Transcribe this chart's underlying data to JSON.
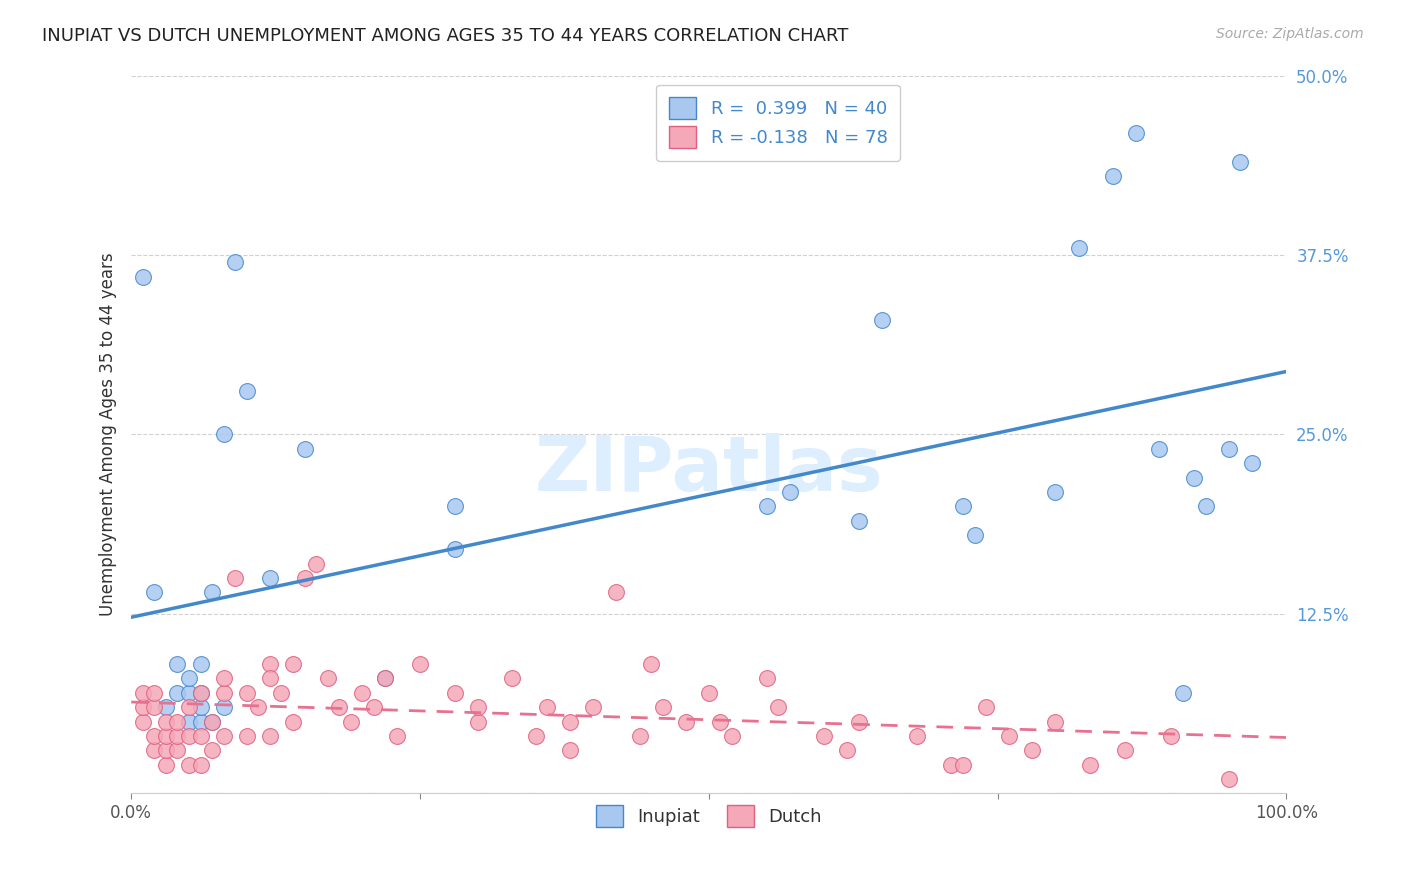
{
  "title": "INUPIAT VS DUTCH UNEMPLOYMENT AMONG AGES 35 TO 44 YEARS CORRELATION CHART",
  "source": "Source: ZipAtlas.com",
  "ylabel": "Unemployment Among Ages 35 to 44 years",
  "xlim": [
    0,
    1.0
  ],
  "ylim": [
    0,
    0.5
  ],
  "xticks": [
    0.0,
    0.25,
    0.5,
    0.75,
    1.0
  ],
  "xticklabels": [
    "0.0%",
    "",
    "",
    "",
    "100.0%"
  ],
  "yticks": [
    0.0,
    0.125,
    0.25,
    0.375,
    0.5
  ],
  "yticklabels": [
    "",
    "12.5%",
    "25.0%",
    "37.5%",
    "50.0%"
  ],
  "inupiat_R": 0.399,
  "inupiat_N": 40,
  "dutch_R": -0.138,
  "dutch_N": 78,
  "inupiat_color": "#a8c8f0",
  "dutch_color": "#f5a8b8",
  "inupiat_line_color": "#4488cc",
  "dutch_line_color": "#e87090",
  "watermark": "ZIPatlas",
  "inupiat_x": [
    0.01,
    0.02,
    0.03,
    0.04,
    0.04,
    0.05,
    0.05,
    0.05,
    0.06,
    0.06,
    0.06,
    0.06,
    0.07,
    0.07,
    0.08,
    0.08,
    0.09,
    0.1,
    0.12,
    0.15,
    0.22,
    0.28,
    0.28,
    0.55,
    0.57,
    0.63,
    0.65,
    0.72,
    0.73,
    0.8,
    0.82,
    0.85,
    0.87,
    0.89,
    0.91,
    0.92,
    0.93,
    0.95,
    0.96,
    0.97
  ],
  "inupiat_y": [
    0.36,
    0.14,
    0.06,
    0.07,
    0.09,
    0.05,
    0.07,
    0.08,
    0.05,
    0.06,
    0.07,
    0.09,
    0.05,
    0.14,
    0.06,
    0.25,
    0.37,
    0.28,
    0.15,
    0.24,
    0.08,
    0.17,
    0.2,
    0.2,
    0.21,
    0.19,
    0.33,
    0.2,
    0.18,
    0.21,
    0.38,
    0.43,
    0.46,
    0.24,
    0.07,
    0.22,
    0.2,
    0.24,
    0.44,
    0.23
  ],
  "dutch_x": [
    0.01,
    0.01,
    0.01,
    0.02,
    0.02,
    0.02,
    0.02,
    0.03,
    0.03,
    0.03,
    0.03,
    0.04,
    0.04,
    0.04,
    0.05,
    0.05,
    0.05,
    0.06,
    0.06,
    0.06,
    0.07,
    0.07,
    0.08,
    0.08,
    0.08,
    0.09,
    0.1,
    0.1,
    0.11,
    0.12,
    0.12,
    0.12,
    0.13,
    0.14,
    0.14,
    0.15,
    0.16,
    0.17,
    0.18,
    0.19,
    0.2,
    0.21,
    0.22,
    0.23,
    0.25,
    0.28,
    0.3,
    0.3,
    0.33,
    0.35,
    0.36,
    0.38,
    0.38,
    0.4,
    0.42,
    0.44,
    0.45,
    0.46,
    0.48,
    0.5,
    0.51,
    0.52,
    0.55,
    0.56,
    0.6,
    0.62,
    0.63,
    0.68,
    0.71,
    0.72,
    0.74,
    0.76,
    0.78,
    0.8,
    0.83,
    0.86,
    0.9,
    0.95
  ],
  "dutch_y": [
    0.05,
    0.06,
    0.07,
    0.03,
    0.04,
    0.06,
    0.07,
    0.02,
    0.03,
    0.04,
    0.05,
    0.03,
    0.04,
    0.05,
    0.02,
    0.04,
    0.06,
    0.02,
    0.04,
    0.07,
    0.03,
    0.05,
    0.04,
    0.07,
    0.08,
    0.15,
    0.04,
    0.07,
    0.06,
    0.09,
    0.04,
    0.08,
    0.07,
    0.05,
    0.09,
    0.15,
    0.16,
    0.08,
    0.06,
    0.05,
    0.07,
    0.06,
    0.08,
    0.04,
    0.09,
    0.07,
    0.05,
    0.06,
    0.08,
    0.04,
    0.06,
    0.05,
    0.03,
    0.06,
    0.14,
    0.04,
    0.09,
    0.06,
    0.05,
    0.07,
    0.05,
    0.04,
    0.08,
    0.06,
    0.04,
    0.03,
    0.05,
    0.04,
    0.02,
    0.02,
    0.06,
    0.04,
    0.03,
    0.05,
    0.02,
    0.03,
    0.04,
    0.01
  ]
}
